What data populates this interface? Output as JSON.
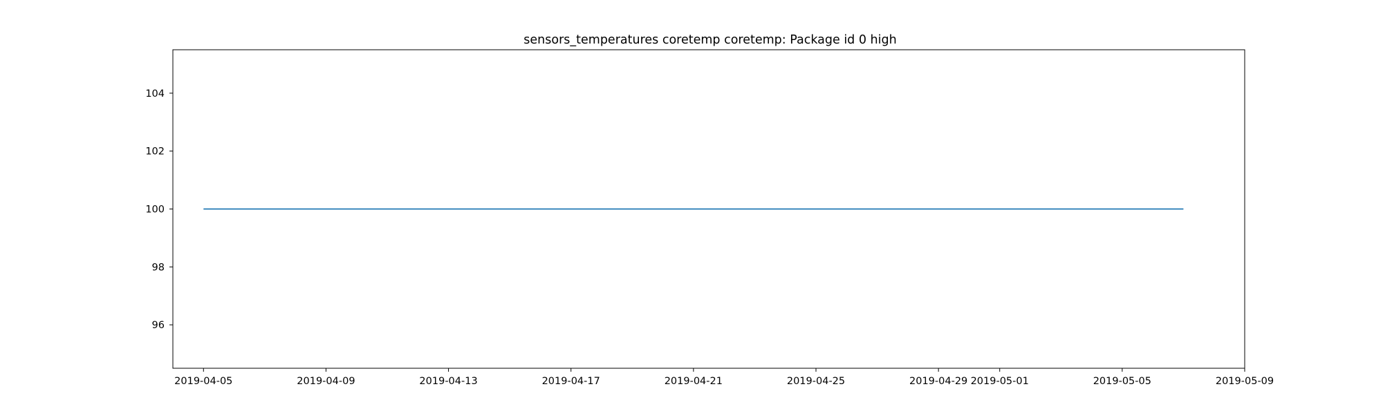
{
  "chart_data": {
    "type": "line",
    "title": "sensors_temperatures coretemp coretemp: Package id 0 high",
    "xlabel": "",
    "ylabel": "",
    "x_type": "date",
    "xlim": [
      "2019-04-04",
      "2019-05-09"
    ],
    "ylim": [
      94.5,
      105.5
    ],
    "x_ticks": [
      "2019-04-05",
      "2019-04-09",
      "2019-04-13",
      "2019-04-17",
      "2019-04-21",
      "2019-04-25",
      "2019-04-29",
      "2019-05-01",
      "2019-05-05",
      "2019-05-09"
    ],
    "y_ticks": [
      96,
      98,
      100,
      102,
      104
    ],
    "grid": false,
    "legend": "none",
    "series": [
      {
        "color": "#1f77b4",
        "x": [
          "2019-04-05",
          "2019-05-07"
        ],
        "y": [
          100,
          100
        ]
      }
    ]
  }
}
